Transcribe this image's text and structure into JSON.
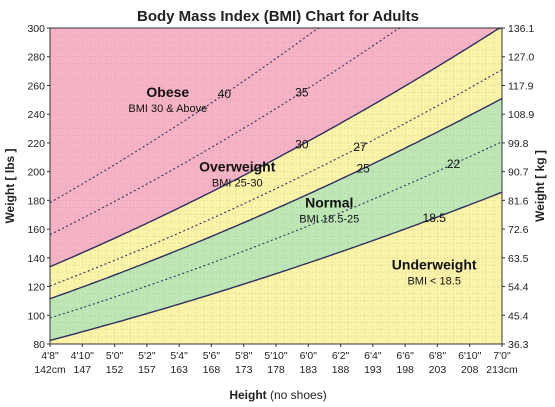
{
  "chart_data": {
    "type": "area",
    "title": "Body Mass Index (BMI) Chart for Adults",
    "xlabel_bold": "Height",
    "xlabel_rest": " (no shoes)",
    "ylabel_left": "Weight [ lbs ]",
    "ylabel_right": "Weight [ kg ]",
    "x_range_in": [
      56,
      84
    ],
    "ylim_lbs": [
      80,
      300
    ],
    "x_ticks": [
      {
        "in": 56,
        "ft": "4'8\"",
        "cm": "142cm"
      },
      {
        "in": 58,
        "ft": "4'10\"",
        "cm": "147"
      },
      {
        "in": 60,
        "ft": "5'0\"",
        "cm": "152"
      },
      {
        "in": 62,
        "ft": "5'2\"",
        "cm": "157"
      },
      {
        "in": 64,
        "ft": "5'4\"",
        "cm": "163"
      },
      {
        "in": 66,
        "ft": "5'6\"",
        "cm": "168"
      },
      {
        "in": 68,
        "ft": "5'8\"",
        "cm": "173"
      },
      {
        "in": 70,
        "ft": "5'10\"",
        "cm": "178"
      },
      {
        "in": 72,
        "ft": "6'0\"",
        "cm": "183"
      },
      {
        "in": 74,
        "ft": "6'2\"",
        "cm": "188"
      },
      {
        "in": 76,
        "ft": "6'4\"",
        "cm": "193"
      },
      {
        "in": 78,
        "ft": "6'6\"",
        "cm": "198"
      },
      {
        "in": 80,
        "ft": "6'8\"",
        "cm": "203"
      },
      {
        "in": 82,
        "ft": "6'10\"",
        "cm": "208"
      },
      {
        "in": 84,
        "ft": "7'0\"",
        "cm": "213cm"
      }
    ],
    "y_ticks_lbs": [
      80,
      100,
      120,
      140,
      160,
      180,
      200,
      220,
      240,
      260,
      280,
      300
    ],
    "y_ticks_kg": [
      "36.3",
      "45.4",
      "54.4",
      "63.5",
      "72.6",
      "81.6",
      "90.7",
      "99.8",
      "108.9",
      "117.9",
      "127.0",
      "136.1"
    ],
    "boundary_curves": [
      {
        "bmi": 18.5,
        "style": "solid",
        "label": "18.5",
        "label_at_in": 79.8
      },
      {
        "bmi": 22,
        "style": "dotted",
        "label": "22",
        "label_at_in": 81
      },
      {
        "bmi": 25,
        "style": "solid",
        "label": "25",
        "label_at_in": 75.4
      },
      {
        "bmi": 27,
        "style": "dotted",
        "label": "27",
        "label_at_in": 75.2
      },
      {
        "bmi": 30,
        "style": "solid",
        "label": "30",
        "label_at_in": 71.6
      },
      {
        "bmi": 35,
        "style": "dotted",
        "label": "35",
        "label_at_in": 71.6
      },
      {
        "bmi": 40,
        "style": "dotted",
        "label": "40",
        "label_at_in": 66.8
      }
    ],
    "regions": [
      {
        "key": "obese",
        "name": "Obese",
        "sub": "BMI 30 & Above",
        "color": "#f7b3c6",
        "label_at": [
          63.3,
          252
        ]
      },
      {
        "key": "overweight",
        "name": "Overweight",
        "sub": "BMI 25-30",
        "color": "#fbf3a7",
        "label_at": [
          67.6,
          200
        ]
      },
      {
        "key": "normal",
        "name": "Normal",
        "sub": "BMI 18.5-25",
        "color": "#bfe7b6",
        "label_at": [
          73.3,
          175
        ]
      },
      {
        "key": "underweight",
        "name": "Underweight",
        "sub": "BMI < 18.5",
        "color": "#fbf3a7",
        "label_at": [
          79.8,
          132
        ]
      }
    ],
    "grid": true,
    "line_color": "#2f2f5f"
  }
}
